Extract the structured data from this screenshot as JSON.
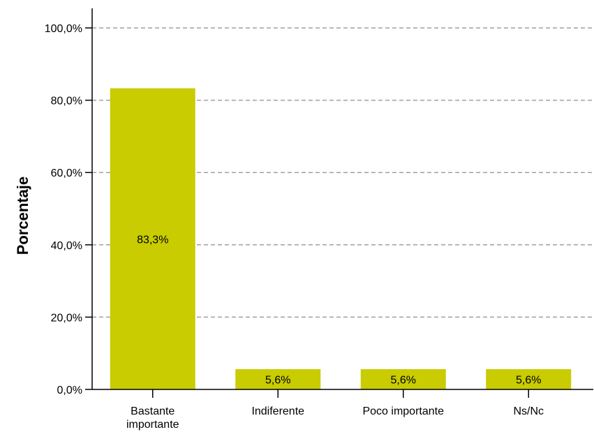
{
  "chart_data": {
    "type": "bar",
    "title": "",
    "xlabel": "",
    "ylabel": "Porcentaje",
    "ylim": [
      0,
      100
    ],
    "yticks": [
      0,
      20,
      40,
      60,
      80,
      100
    ],
    "ytick_labels": [
      "0,0%",
      "20,0%",
      "40,0%",
      "60,0%",
      "80,0%",
      "100,0%"
    ],
    "grid": "horizontal dashed",
    "bar_color": "#c8cc00",
    "categories": [
      [
        "Bastante",
        "importante"
      ],
      [
        "Indiferente"
      ],
      [
        "Poco importante"
      ],
      [
        "Ns/Nc"
      ]
    ],
    "values": [
      83.3,
      5.6,
      5.6,
      5.6
    ],
    "value_labels": [
      "83,3%",
      "5,6%",
      "5,6%",
      "5,6%"
    ]
  }
}
